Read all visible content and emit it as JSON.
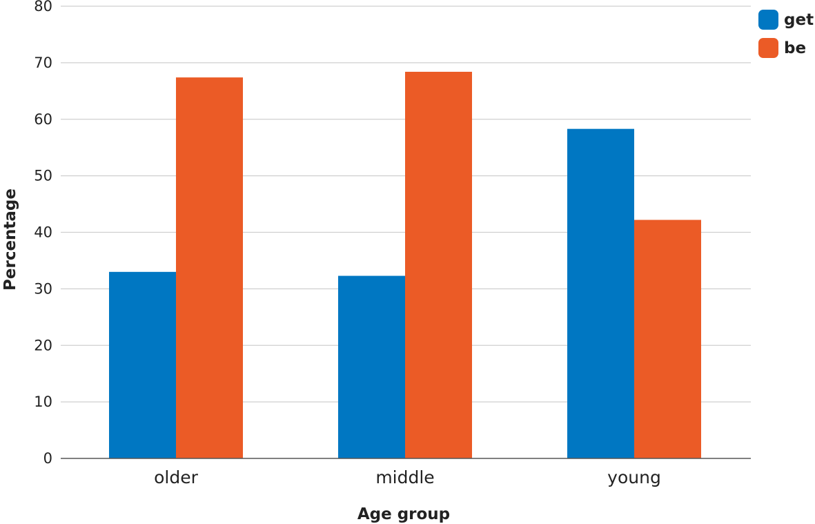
{
  "chart_data": {
    "type": "bar",
    "categories": [
      "older",
      "middle",
      "young"
    ],
    "series": [
      {
        "name": "get",
        "color": "#0077c2",
        "values": [
          33,
          32.3,
          58.3
        ]
      },
      {
        "name": "be",
        "color": "#eb5b26",
        "values": [
          67.4,
          68.4,
          42.2
        ]
      }
    ],
    "xlabel": "Age group",
    "ylabel": "Percentage",
    "ylim": [
      0,
      80
    ],
    "yticks": [
      0,
      10,
      20,
      30,
      40,
      50,
      60,
      70,
      80
    ],
    "grid": true,
    "legend_position": "top-right"
  }
}
